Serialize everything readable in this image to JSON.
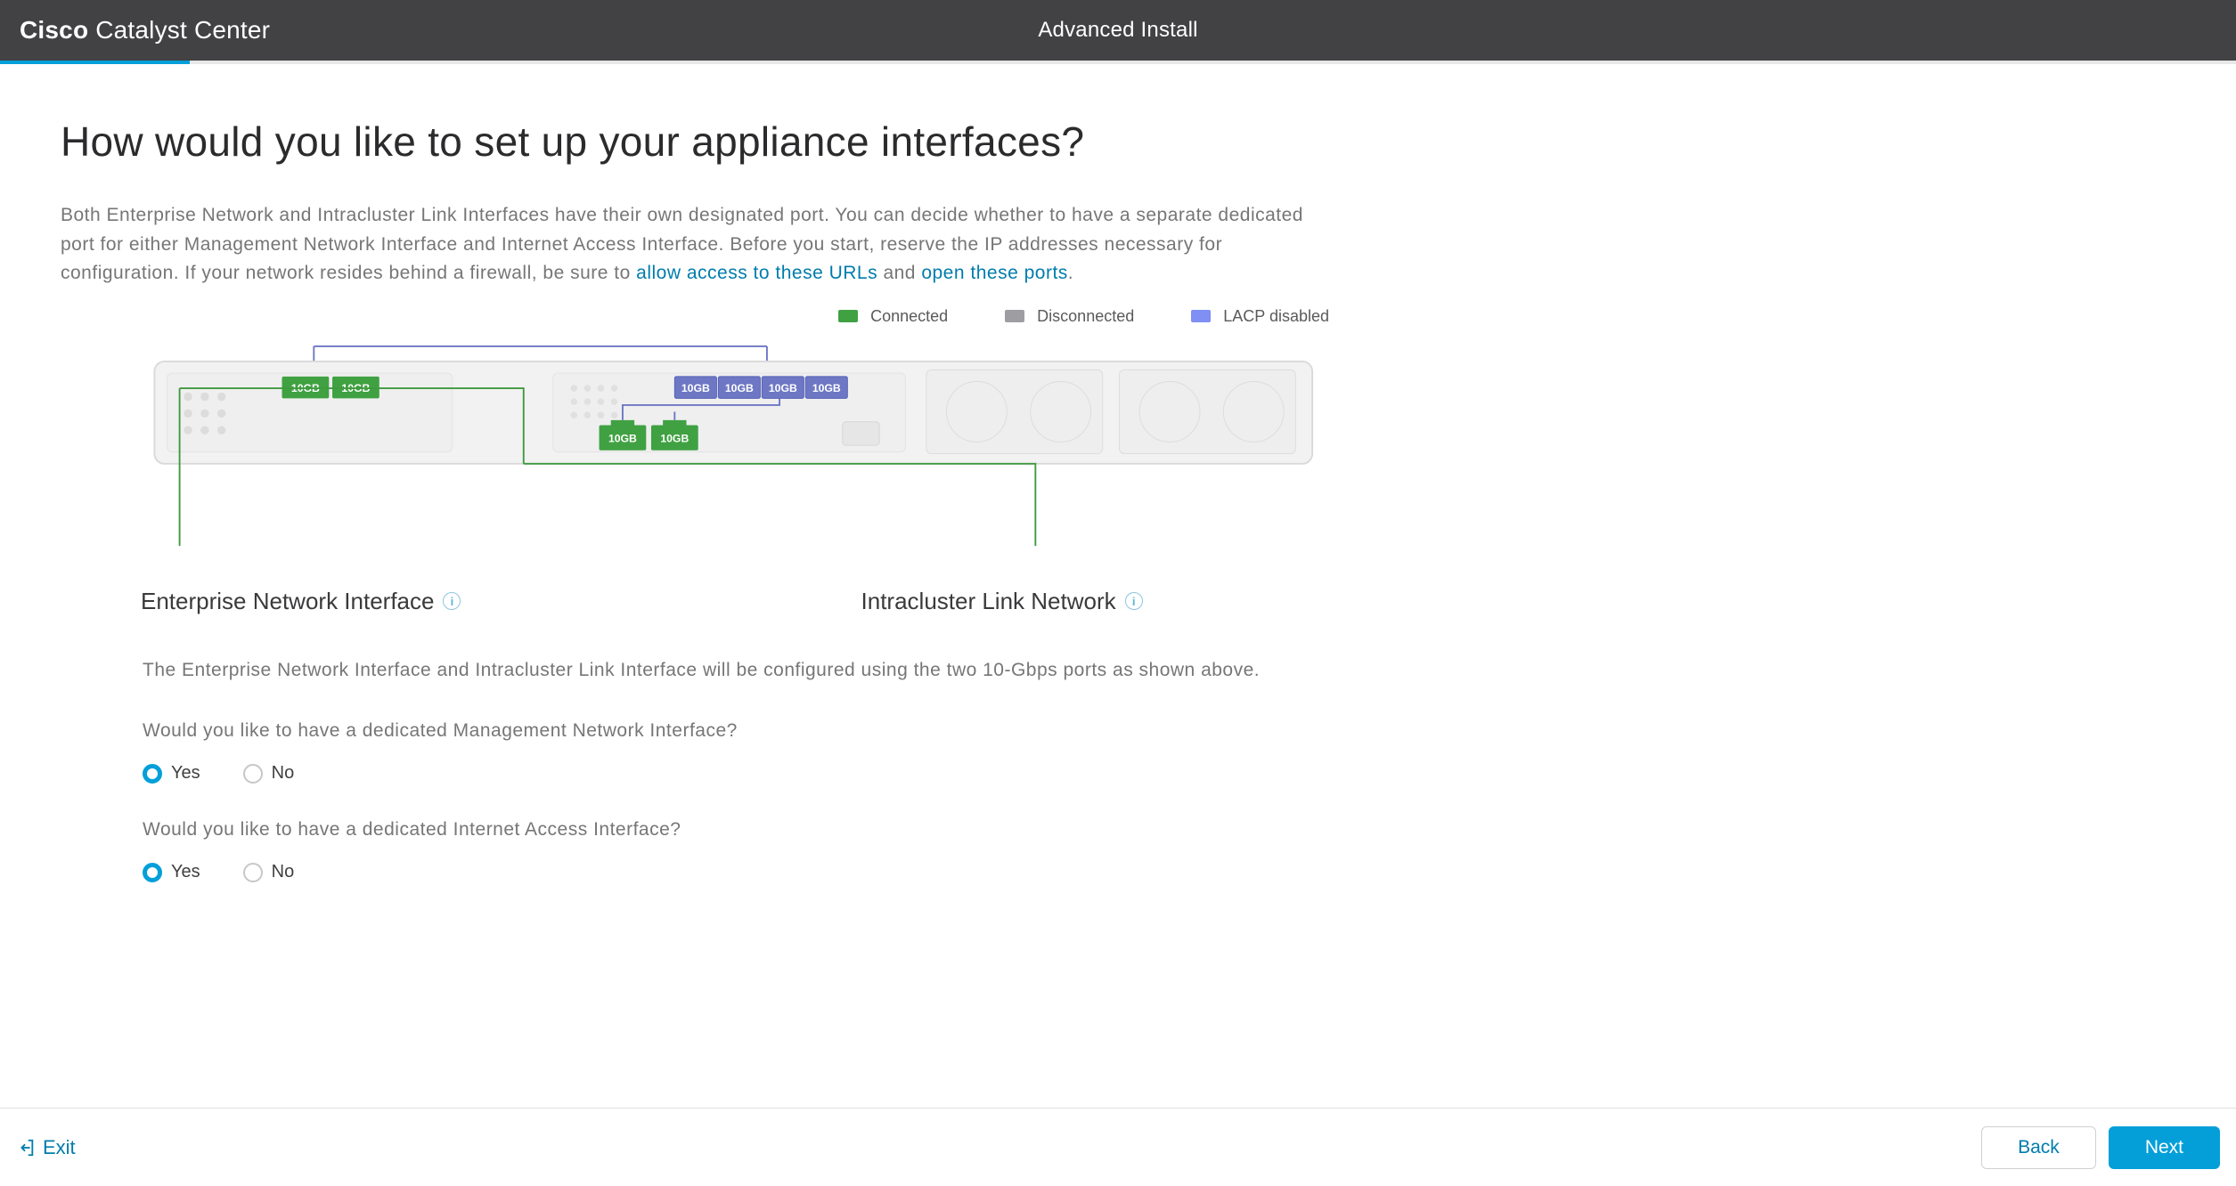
{
  "header": {
    "brand_bold": "Cisco",
    "brand_rest": "Catalyst Center",
    "title": "Advanced Install",
    "progress_percent": 8.5
  },
  "page": {
    "heading": "How would you like to set up your appliance interfaces?",
    "intro_prefix": "Both Enterprise Network and Intracluster Link Interfaces have their own designated port. You can decide whether to have a separate dedicated port for either Management Network Interface and Internet Access Interface. Before you start, reserve the IP addresses necessary for configuration. If your network resides behind a firewall, be sure to ",
    "link1": "allow access to these URLs",
    "intro_mid": " and ",
    "link2": "open these ports",
    "intro_suffix": "."
  },
  "legend": {
    "connected": "Connected",
    "disconnected": "Disconnected",
    "lacp": "LACP disabled",
    "colors": {
      "connected": "#40a142",
      "disconnected": "#9e9ea2",
      "lacp": "#7f8ff4"
    }
  },
  "diagram": {
    "chassis": {
      "stroke": "#d9d9d9",
      "fill": "#f5f5f5"
    },
    "line_green": "#3f9a3f",
    "line_blue": "#6d77c4",
    "ports": {
      "top_left": [
        {
          "label": "10GB",
          "state": "connected",
          "color": "#40a142"
        },
        {
          "label": "10GB",
          "state": "connected",
          "color": "#40a142"
        }
      ],
      "top_right": [
        {
          "label": "10GB",
          "state": "lacp",
          "color": "#6d77c4"
        },
        {
          "label": "10GB",
          "state": "lacp",
          "color": "#6d77c4"
        },
        {
          "label": "10GB",
          "state": "lacp",
          "color": "#6d77c4"
        },
        {
          "label": "10GB",
          "state": "lacp",
          "color": "#6d77c4"
        }
      ],
      "bottom": [
        {
          "label": "10GB",
          "state": "connected",
          "color": "#40a142"
        },
        {
          "label": "10GB",
          "state": "connected",
          "color": "#40a142"
        }
      ]
    }
  },
  "iface_labels": {
    "left": "Enterprise Network Interface",
    "right": "Intracluster Link Network"
  },
  "body_text": "The Enterprise Network Interface and Intracluster Link Interface will be configured using the two 10-Gbps ports as shown above.",
  "q1": {
    "text": "Would you like to have a dedicated Management Network Interface?",
    "yes": "Yes",
    "no": "No",
    "value": "yes"
  },
  "q2": {
    "text": "Would you like to have a dedicated Internet Access Interface?",
    "yes": "Yes",
    "no": "No",
    "value": "yes"
  },
  "footer": {
    "exit": "Exit",
    "back": "Back",
    "next": "Next"
  }
}
